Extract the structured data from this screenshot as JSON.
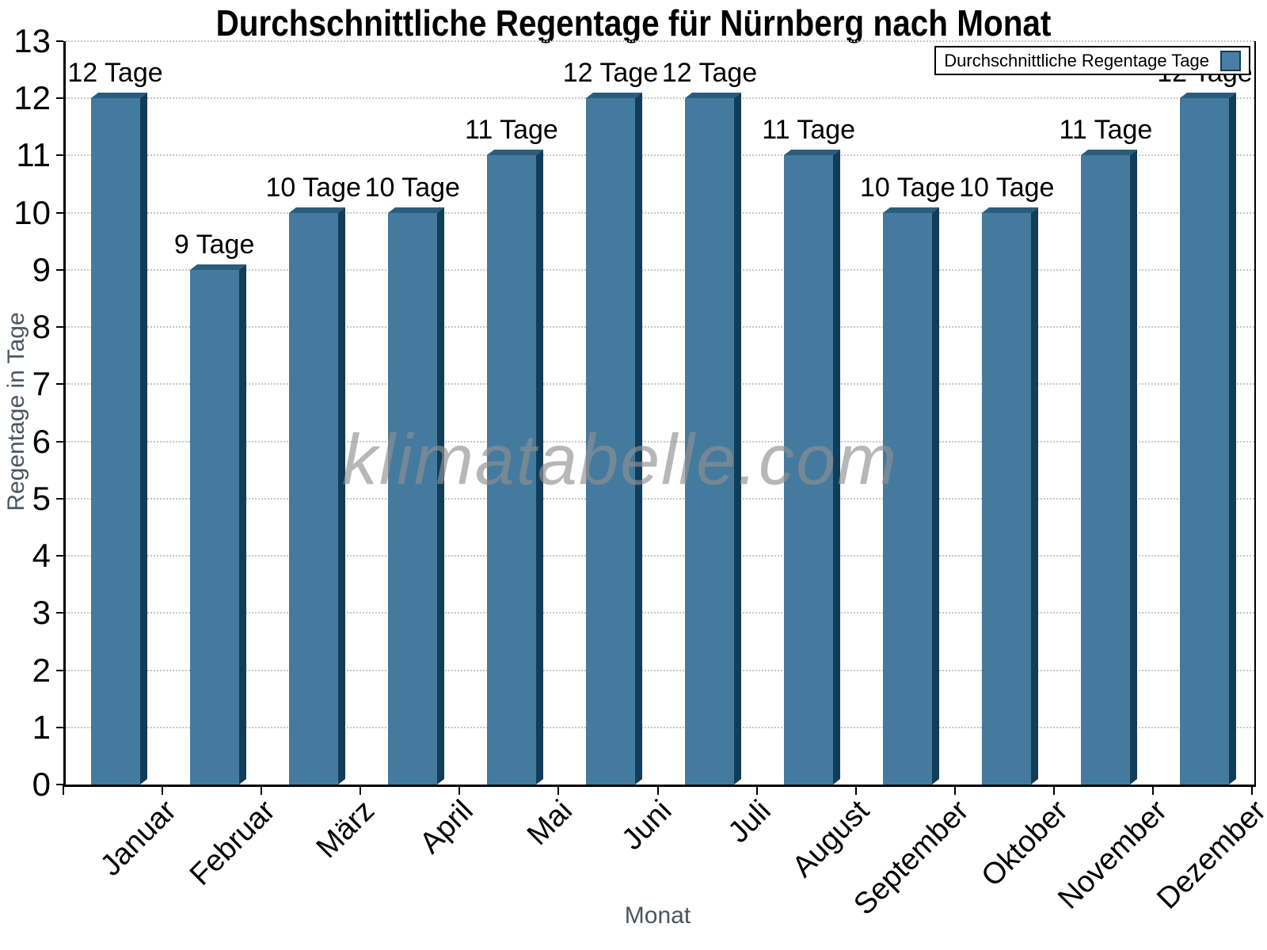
{
  "chart_data": {
    "type": "bar",
    "title": "Durchschnittliche Regentage für Nürnberg nach Monat",
    "categories": [
      "Januar",
      "Februar",
      "März",
      "April",
      "Mai",
      "Juni",
      "Juli",
      "August",
      "September",
      "Oktober",
      "November",
      "Dezember"
    ],
    "values": [
      12,
      9,
      10,
      10,
      11,
      12,
      12,
      11,
      10,
      10,
      11,
      12
    ],
    "value_labels": [
      "12 Tage",
      "9 Tage",
      "10 Tage",
      "10 Tage",
      "11 Tage",
      "12 Tage",
      "12 Tage",
      "11 Tage",
      "10 Tage",
      "10 Tage",
      "11 Tage",
      "12 Tage"
    ],
    "xlabel": "Monat",
    "ylabel": "Regentage in Tage",
    "ylim": [
      0,
      13
    ],
    "yticks": [
      0,
      1,
      2,
      3,
      4,
      5,
      6,
      7,
      8,
      9,
      10,
      11,
      12,
      13
    ],
    "legend": [
      {
        "label": "Durchschnittliche Regentage Tage",
        "swatch_color": "#4a7da2"
      }
    ],
    "legend_position": "top-right",
    "grid": "horizontal-dotted",
    "watermark": "klimatabelle.com",
    "colors": {
      "bar_front": "#447a9e",
      "bar_top": "#2a5c7d",
      "bar_side": "#123d59",
      "axis_title": "#4a5560",
      "grid": "#c6c6c6"
    }
  }
}
